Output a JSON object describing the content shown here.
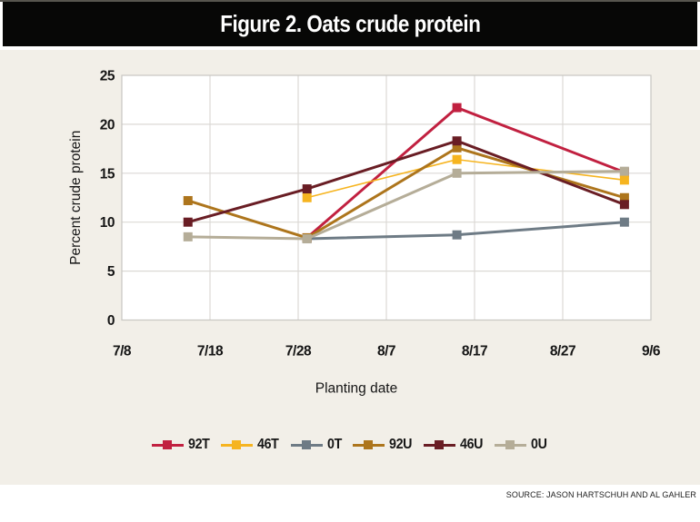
{
  "title": "Figure 2. Oats crude protein",
  "source": "SOURCE: JASON HARTSCHUH AND AL GAHLER",
  "colors": {
    "banner_bg": "#070706",
    "banner_text": "#ffffff",
    "chart_bg": "#f2efe8",
    "plot_bg": "#ffffff",
    "grid": "#dbd9d5",
    "plot_border": "#c8c6c2",
    "axis_text": "#151515"
  },
  "chart_data": {
    "type": "line",
    "title": "Figure 2. Oats crude protein",
    "xlabel": "Planting date",
    "ylabel": "Percent crude protein",
    "x_unit": "days since 7/8",
    "xlim_days": [
      0,
      60
    ],
    "ylim": [
      0,
      25
    ],
    "y_ticks": [
      0,
      5,
      10,
      15,
      20,
      25
    ],
    "x_ticks": [
      {
        "label": "7/8",
        "day": 0
      },
      {
        "label": "7/18",
        "day": 10
      },
      {
        "label": "7/28",
        "day": 20
      },
      {
        "label": "8/7",
        "day": 30
      },
      {
        "label": "8/17",
        "day": 40
      },
      {
        "label": "8/27",
        "day": 50
      },
      {
        "label": "9/6",
        "day": 60
      }
    ],
    "grid": true,
    "legend_position": "bottom",
    "marker": "square",
    "series": [
      {
        "name": "92T",
        "color": "#c12040",
        "line_width": 3,
        "points": [
          [
            21,
            8.4
          ],
          [
            38,
            21.7
          ],
          [
            57,
            15.1
          ]
        ]
      },
      {
        "name": "46T",
        "color": "#f6b41f",
        "line_width": 1.6,
        "points": [
          [
            21,
            12.5
          ],
          [
            38,
            16.4
          ],
          [
            57,
            14.3
          ]
        ]
      },
      {
        "name": "0T",
        "color": "#6e7b85",
        "line_width": 3,
        "points": [
          [
            21,
            8.3
          ],
          [
            38,
            8.7
          ],
          [
            57,
            10.0
          ]
        ]
      },
      {
        "name": "92U",
        "color": "#ad751c",
        "line_width": 3,
        "points": [
          [
            7.5,
            12.2
          ],
          [
            21,
            8.4
          ],
          [
            38,
            17.6
          ],
          [
            57,
            12.5
          ]
        ]
      },
      {
        "name": "46U",
        "color": "#691d24",
        "line_width": 3,
        "points": [
          [
            7.5,
            10.0
          ],
          [
            21,
            13.4
          ],
          [
            38,
            18.3
          ],
          [
            57,
            11.8
          ]
        ]
      },
      {
        "name": "0U",
        "color": "#b5ad98",
        "line_width": 3,
        "points": [
          [
            7.5,
            8.5
          ],
          [
            21,
            8.3
          ],
          [
            38,
            15.0
          ],
          [
            57,
            15.2
          ]
        ]
      }
    ]
  }
}
